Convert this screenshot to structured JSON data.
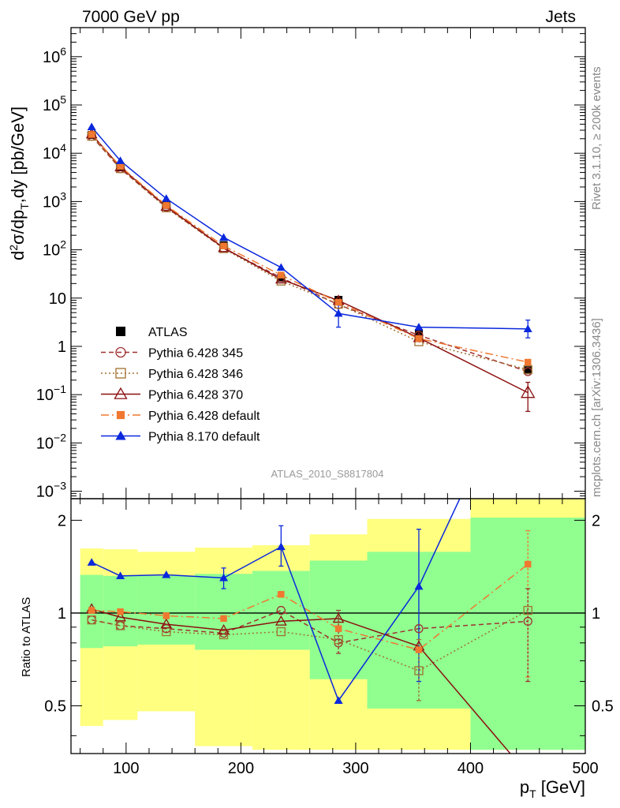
{
  "header": {
    "left": "7000 GeV pp",
    "right": "Jets"
  },
  "side_labels": {
    "rivet": "Rivet 3.1.10, ≥ 200k events",
    "mcplots": "mcplots.cern.ch [arXiv:1306.3436]"
  },
  "analysis_id": "ATLAS_2010_S8817804",
  "colors": {
    "atlas": "#000000",
    "p345": "#a03030",
    "p346": "#a07030",
    "p370": "#8b1010",
    "p6def": "#f07830",
    "p8def": "#0a28dc",
    "band_yellow": "#ffff80",
    "band_green": "#90ff90"
  },
  "chart_data": [
    {
      "type": "line",
      "panel": "main",
      "ylabel": "d²σ/dp_T,dy [pb/GeV]",
      "yscale": "log",
      "xlim": [
        52,
        500
      ],
      "ylim": [
        0.0007,
        4000000
      ],
      "ytick_labels": [
        "10^-3",
        "10^-2",
        "10^-1",
        "1",
        "10",
        "10^2",
        "10^3",
        "10^4",
        "10^5",
        "10^6"
      ],
      "legend_position": "lower-left",
      "x": [
        70,
        95,
        135,
        185,
        235,
        285,
        355,
        450
      ],
      "series": [
        {
          "name": "ATLAS",
          "marker": "filled-square",
          "line": "none",
          "values": [
            24000,
            5300,
            850,
            125,
            26,
            9.2,
            1.9,
            0.32
          ]
        },
        {
          "name": "Pythia 6.428 345",
          "marker": "open-circle",
          "line": "dashed",
          "values": [
            22500,
            4800,
            760,
            107,
            26.5,
            7.3,
            1.7,
            0.3
          ]
        },
        {
          "name": "Pythia 6.428 346",
          "marker": "open-square",
          "line": "dotted",
          "values": [
            22500,
            4800,
            740,
            106,
            22.5,
            7.5,
            1.25,
            0.33
          ]
        },
        {
          "name": "Pythia 6.428 370",
          "marker": "open-triangle",
          "line": "solid",
          "values": [
            24800,
            5150,
            790,
            110,
            24.5,
            8.9,
            1.5,
            0.11
          ]
        },
        {
          "name": "Pythia 6.428 default",
          "marker": "filled-small-square",
          "line": "dashdot",
          "values": [
            24500,
            5350,
            830,
            120,
            30,
            8.2,
            1.45,
            0.47
          ]
        },
        {
          "name": "Pythia 8.170 default",
          "marker": "filled-triangle",
          "line": "solid",
          "values": [
            35000,
            7000,
            1150,
            180,
            43,
            4.8,
            2.5,
            2.3
          ]
        }
      ],
      "error_bars": {
        "Pythia 8.170 default": {
          "x": [
            285,
            450
          ],
          "low": [
            2.5,
            1.5
          ],
          "high": [
            7.5,
            3.5
          ]
        },
        "Pythia 6.428 370": {
          "x": [
            450
          ],
          "low": [
            0.045
          ],
          "high": [
            0.18
          ]
        }
      }
    },
    {
      "type": "line",
      "panel": "ratio",
      "ylabel": "Ratio to ATLAS",
      "xlabel": "p_T [GeV]",
      "yscale": "log",
      "xlim": [
        52,
        500
      ],
      "ylim": [
        0.35,
        2.35
      ],
      "ytick_labels": [
        "0.5",
        "1",
        "2"
      ],
      "xtick_labels": [
        "100",
        "200",
        "300",
        "400",
        "500"
      ],
      "reference_line": 1,
      "bins": [
        [
          60,
          80
        ],
        [
          80,
          110
        ],
        [
          110,
          160
        ],
        [
          160,
          210
        ],
        [
          210,
          260
        ],
        [
          260,
          310
        ],
        [
          310,
          400
        ],
        [
          400,
          500
        ]
      ],
      "band_yellow": [
        [
          0.43,
          1.62
        ],
        [
          0.45,
          1.61
        ],
        [
          0.48,
          1.58
        ],
        [
          0.37,
          1.63
        ],
        [
          0.36,
          1.66
        ],
        [
          0.36,
          1.8
        ],
        [
          0.36,
          2.02
        ],
        [
          0.36,
          2.35
        ]
      ],
      "band_green": [
        [
          0.77,
          1.33
        ],
        [
          0.78,
          1.32
        ],
        [
          0.79,
          1.32
        ],
        [
          0.76,
          1.34
        ],
        [
          0.76,
          1.37
        ],
        [
          0.61,
          1.48
        ],
        [
          0.49,
          1.58
        ],
        [
          0.36,
          2.04
        ]
      ],
      "x": [
        70,
        95,
        135,
        185,
        235,
        285,
        355,
        450
      ],
      "series": [
        {
          "name": "Pythia 6.428 345",
          "values": [
            0.95,
            0.91,
            0.89,
            0.86,
            1.02,
            0.8,
            0.89,
            0.94
          ]
        },
        {
          "name": "Pythia 6.428 346",
          "values": [
            0.95,
            0.91,
            0.87,
            0.85,
            0.87,
            0.82,
            0.65,
            1.02
          ]
        },
        {
          "name": "Pythia 6.428 370",
          "values": [
            1.03,
            0.97,
            0.92,
            0.88,
            0.94,
            0.96,
            0.78,
            0.3
          ]
        },
        {
          "name": "Pythia 6.428 default",
          "values": [
            1.02,
            1.01,
            0.98,
            0.96,
            1.15,
            0.89,
            0.76,
            1.44
          ]
        },
        {
          "name": "Pythia 8.170 default",
          "values": [
            1.46,
            1.32,
            1.33,
            1.3,
            1.64,
            0.52,
            1.22,
            7.0
          ]
        }
      ],
      "error_bars": {
        "Pythia 8.170 default": {
          "x": [
            185,
            235,
            355
          ],
          "low": [
            1.2,
            1.42,
            0.6
          ],
          "high": [
            1.4,
            1.92,
            1.87
          ]
        },
        "Pythia 6.428 default": {
          "x": [
            450
          ],
          "low": [
            0.62
          ],
          "high": [
            1.85
          ]
        },
        "Pythia 6.428 345": {
          "x": [
            285,
            450
          ],
          "low": [
            0.74,
            0.6
          ],
          "high": [
            1.02,
            1.2
          ]
        },
        "Pythia 6.428 346": {
          "x": [
            355
          ],
          "low": [
            0.52
          ],
          "high": [
            0.82
          ]
        }
      }
    }
  ]
}
